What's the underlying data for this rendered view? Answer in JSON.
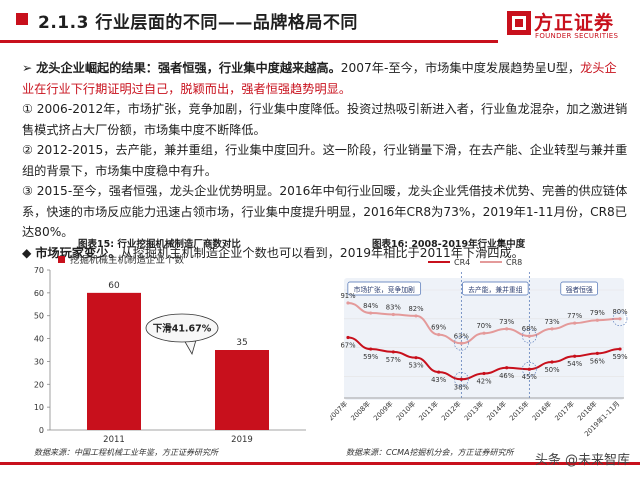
{
  "header": {
    "title": "2.1.3 行业层面的不同——品牌格局不同",
    "logo_cn": "方正证券",
    "logo_en": "FOUNDER SECURITIES"
  },
  "colors": {
    "accent": "#c8101c",
    "cr8_line": "#e49a9a",
    "cr4_line": "#c8101c",
    "shade": "#eef2f8",
    "callout": "#f7f7f7"
  },
  "body": {
    "p1_bullet": "➢",
    "p1_lead": "龙头企业崛起的结果：强者恒强，行业集中度越来越高。",
    "p1_text1": "2007年-至今，市场集中度发展趋势呈U型，",
    "p1_red": "龙头企业在行业下行期证明过自己，脱颖而出，强者恒强趋势明显。",
    "p2": "①  2006-2012年，市场扩张，竞争加剧，行业集中度降低。投资过热吸引新进入者，行业鱼龙混杂，加之激进销售模式挤占大厂份额，市场集中度不断降低。",
    "p3": "②  2012-2015，去产能，兼并重组，行业集中度回升。这一阶段，行业销量下滑，在去产能、企业转型与兼并重组的背景下，市场集中度稳中有升。",
    "p4": "③  2015-至今，强者恒强，龙头企业优势明显。2016年中旬行业回暖，龙头企业凭借技术优势、完善的供应链体系，快速的市场反应能力迅速占领市场，行业集中度提升明显，2016年CR8为73%，2019年1-11月份，CR8已达80%。",
    "p5_bullet": "◆",
    "p5_lead": "市场玩家变少。",
    "p5_text": "从挖掘机主机制造企业个数也可以看到，2019年相比于2011年下滑四成。"
  },
  "figure15": {
    "caption": "图表15: 行业挖掘机械制造厂商数对比",
    "source": "数据来源：中国工程机械工业年鉴，方正证券研究所",
    "callout": "下滑41.67%"
  },
  "figure16": {
    "caption": "图表16: 2008-2019年行业集中度",
    "source": "数据来源：CCMA挖掘机分会，方正证券研究所",
    "phase_labels": [
      "市场扩张，竞争加剧",
      "去产能，兼并重组",
      "强者恒强"
    ]
  },
  "watermark": "头条 @未来智库",
  "chart_data": [
    {
      "type": "bar",
      "title": "",
      "categories": [
        "2011",
        "2019"
      ],
      "series": [
        {
          "name": "挖掘机械主机制造企业个数",
          "values": [
            60,
            35
          ]
        }
      ],
      "ylim": [
        0,
        70
      ],
      "yticks": [
        0,
        10,
        20,
        30,
        40,
        50,
        60,
        70
      ],
      "data_labels": [
        "60",
        "35"
      ],
      "legend": "top-left",
      "grid": false
    },
    {
      "type": "line",
      "title": "",
      "x": [
        "2007年",
        "2008年",
        "2009年",
        "2010年",
        "2011年",
        "2012年",
        "2013年",
        "2014年",
        "2015年",
        "2016年",
        "2017年",
        "2018年",
        "2019年1-11月"
      ],
      "series": [
        {
          "name": "CR4",
          "values": [
            67,
            59,
            57,
            53,
            43,
            38,
            42,
            46,
            45,
            50,
            54,
            56,
            59
          ],
          "labels": [
            "67%",
            "59%",
            "57%",
            "53%",
            "43%",
            "38%",
            "42%",
            "46%",
            "45%",
            "50%",
            "54%",
            "56%",
            "59%"
          ]
        },
        {
          "name": "CR8",
          "values": [
            91,
            84,
            83,
            82,
            69,
            63,
            70,
            73,
            68,
            73,
            77,
            79,
            80
          ],
          "labels": [
            "91%",
            "84%",
            "83%",
            "82%",
            "69%",
            "63%",
            "70%",
            "73%",
            "68%",
            "73%",
            "77%",
            "79%",
            "80%"
          ]
        }
      ],
      "legend": "top-center",
      "grid": true
    }
  ]
}
